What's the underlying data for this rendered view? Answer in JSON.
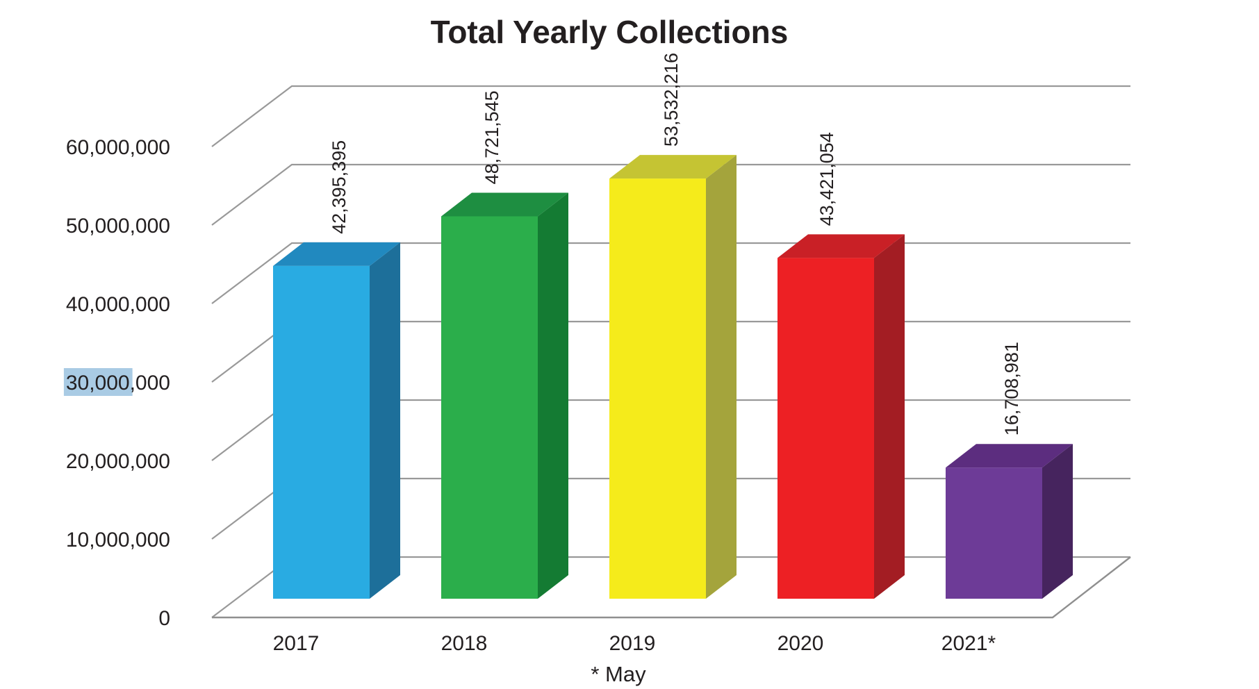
{
  "chart_data": {
    "type": "bar",
    "projection": "3d",
    "title": "Total Yearly Collections",
    "footnote": "* May",
    "categories": [
      "2017",
      "2018",
      "2019",
      "2020",
      "2021*"
    ],
    "values": [
      42395395,
      48721545,
      53532216,
      43421054,
      16708981
    ],
    "value_labels": [
      "42,395,395",
      "48,721,545",
      "53,532,216",
      "43,421,054",
      "16,708,981"
    ],
    "ylim": [
      0,
      60000000
    ],
    "ytick_interval": 10000000,
    "ytick_labels": [
      "0",
      "10,000,000",
      "20,000,000",
      "30,000,000",
      "40,000,000",
      "50,000,000",
      "60,000,000"
    ],
    "xlabel": "",
    "ylabel": "",
    "grid": true,
    "legend": "none",
    "gridline_color": "#999999",
    "text_color": "#231F20",
    "background_color": "#FFFFFF",
    "bar_colors": [
      {
        "name": "blue",
        "front": "#29ABE2",
        "top": "#2189BF",
        "side": "#1D6F9A"
      },
      {
        "name": "green",
        "front": "#2BAE4B",
        "top": "#1E8E41",
        "side": "#147B33"
      },
      {
        "name": "yellow",
        "front": "#F5EB1B",
        "top": "#C5C433",
        "side": "#A4A43C"
      },
      {
        "name": "red",
        "front": "#ED2024",
        "top": "#C92026",
        "side": "#A31D23"
      },
      {
        "name": "purple",
        "front": "#6D3B97",
        "top": "#5C2D7F",
        "side": "#46245E"
      }
    ],
    "selection": {
      "highlighted_text": "30,000",
      "on_tick_label": "30,000,000",
      "highlight_color": "#A9CBE4"
    }
  }
}
